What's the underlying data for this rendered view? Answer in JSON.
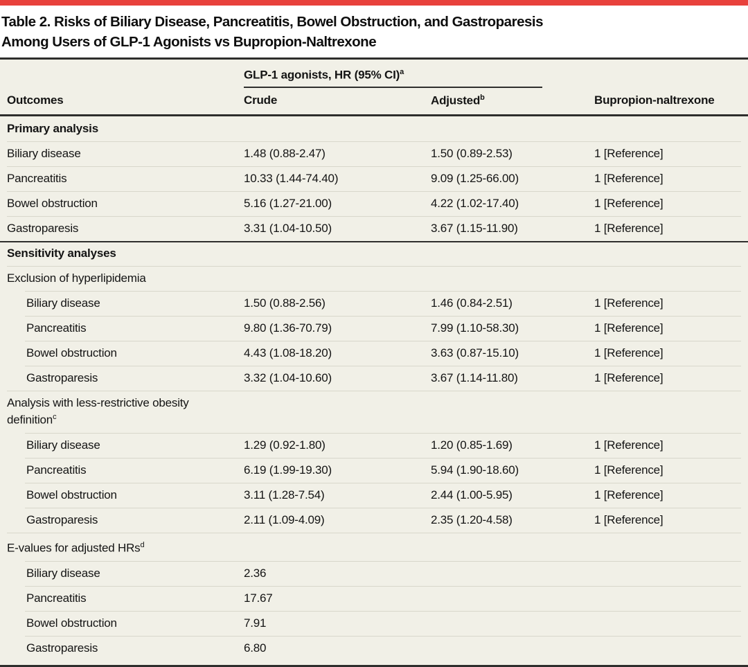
{
  "colors": {
    "accent_red": "#E8413C",
    "table_bg": "#F1F0E7",
    "rule_dark": "#2E2E2C",
    "rule_light": "#D8D7CB",
    "text": "#141414"
  },
  "title": {
    "line1": "Table 2. Risks of Biliary Disease, Pancreatitis, Bowel Obstruction, and Gastroparesis",
    "line2": "Among Users of GLP-1 Agonists vs Bupropion-Naltrexone"
  },
  "header": {
    "spanner_label": "GLP-1 agonists, HR (95% CI)",
    "spanner_sup": "a",
    "outcomes": "Outcomes",
    "crude": "Crude",
    "adjusted": "Adjusted",
    "adjusted_sup": "b",
    "comparator": "Bupropion-naltrexone"
  },
  "rows": [
    {
      "type": "section",
      "rule": "none",
      "label": "Primary analysis"
    },
    {
      "type": "data",
      "rule": "light",
      "indent": false,
      "label": "Biliary disease",
      "crude": "1.48 (0.88-2.47)",
      "adjusted": "1.50 (0.89-2.53)",
      "comparator": "1 [Reference]"
    },
    {
      "type": "data",
      "rule": "light",
      "indent": false,
      "label": "Pancreatitis",
      "crude": "10.33 (1.44-74.40)",
      "adjusted": "9.09 (1.25-66.00)",
      "comparator": "1 [Reference]"
    },
    {
      "type": "data",
      "rule": "light",
      "indent": false,
      "label": "Bowel obstruction",
      "crude": "5.16 (1.27-21.00)",
      "adjusted": "4.22 (1.02-17.40)",
      "comparator": "1 [Reference]"
    },
    {
      "type": "data",
      "rule": "light",
      "indent": false,
      "label": "Gastroparesis",
      "crude": "3.31 (1.04-10.50)",
      "adjusted": "3.67 (1.15-11.90)",
      "comparator": "1 [Reference]"
    },
    {
      "type": "section",
      "rule": "dark",
      "label": "Sensitivity analyses"
    },
    {
      "type": "subheader",
      "rule": "light",
      "label": "Exclusion of hyperlipidemia",
      "sup": ""
    },
    {
      "type": "data",
      "rule": "light",
      "indent": true,
      "label": "Biliary disease",
      "crude": "1.50 (0.88-2.56)",
      "adjusted": "1.46 (0.84-2.51)",
      "comparator": "1 [Reference]"
    },
    {
      "type": "data",
      "rule": "light",
      "indent": true,
      "label": "Pancreatitis",
      "crude": "9.80 (1.36-70.79)",
      "adjusted": "7.99 (1.10-58.30)",
      "comparator": "1 [Reference]"
    },
    {
      "type": "data",
      "rule": "light",
      "indent": true,
      "label": "Bowel obstruction",
      "crude": "4.43 (1.08-18.20)",
      "adjusted": "3.63 (0.87-15.10)",
      "comparator": "1 [Reference]"
    },
    {
      "type": "data",
      "rule": "light",
      "indent": true,
      "label": "Gastroparesis",
      "crude": "3.32 (1.04-10.60)",
      "adjusted": "3.67 (1.14-11.80)",
      "comparator": "1 [Reference]"
    },
    {
      "type": "subheader",
      "rule": "light",
      "label": "Analysis with less-restrictive obesity definition",
      "sup": "c"
    },
    {
      "type": "data",
      "rule": "light",
      "indent": true,
      "label": "Biliary disease",
      "crude": "1.29 (0.92-1.80)",
      "adjusted": "1.20 (0.85-1.69)",
      "comparator": "1 [Reference]"
    },
    {
      "type": "data",
      "rule": "light",
      "indent": true,
      "label": "Pancreatitis",
      "crude": "6.19 (1.99-19.30)",
      "adjusted": "5.94 (1.90-18.60)",
      "comparator": "1 [Reference]"
    },
    {
      "type": "data",
      "rule": "light",
      "indent": true,
      "label": "Bowel obstruction",
      "crude": "3.11 (1.28-7.54)",
      "adjusted": "2.44 (1.00-5.95)",
      "comparator": "1 [Reference]"
    },
    {
      "type": "data",
      "rule": "light",
      "indent": true,
      "label": "Gastroparesis",
      "crude": "2.11 (1.09-4.09)",
      "adjusted": "2.35 (1.20-4.58)",
      "comparator": "1 [Reference]"
    },
    {
      "type": "subheader",
      "rule": "light",
      "label": "E-values for adjusted HRs",
      "sup": "d"
    },
    {
      "type": "data",
      "rule": "light",
      "indent": true,
      "label": "Biliary disease",
      "crude": "2.36",
      "adjusted": "",
      "comparator": ""
    },
    {
      "type": "data",
      "rule": "light",
      "indent": true,
      "label": "Pancreatitis",
      "crude": "17.67",
      "adjusted": "",
      "comparator": ""
    },
    {
      "type": "data",
      "rule": "light",
      "indent": true,
      "label": "Bowel obstruction",
      "crude": "7.91",
      "adjusted": "",
      "comparator": ""
    },
    {
      "type": "data",
      "rule": "light",
      "indent": true,
      "label": "Gastroparesis",
      "crude": "6.80",
      "adjusted": "",
      "comparator": ""
    }
  ]
}
